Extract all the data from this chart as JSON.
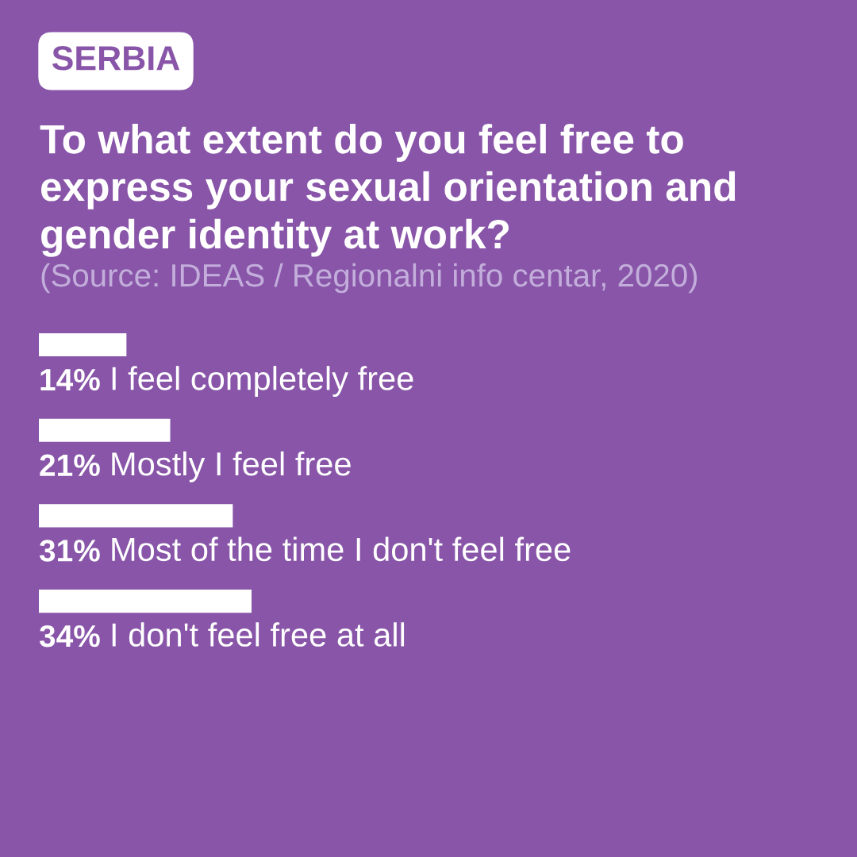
{
  "chart_data": {
    "type": "bar",
    "orientation": "horizontal",
    "title": "To what extent do you feel free to\nexpress your sexual orientation and\ngender identity at work?",
    "annotations": [
      "SERBIA",
      "(Source: IDEAS / Regionalni info centar, 2020)"
    ],
    "categories": [
      "I feel completely free",
      "Mostly I feel free",
      "Most of the time I don't feel free",
      "I don't feel free at all"
    ],
    "values": [
      14,
      21,
      31,
      34
    ],
    "value_labels": [
      "14%",
      "21%",
      "31%",
      "34%"
    ],
    "colors": [
      "#ffffff",
      "#ffffff",
      "#ffffff",
      "#ffffff"
    ],
    "tick_labels": false
  }
}
